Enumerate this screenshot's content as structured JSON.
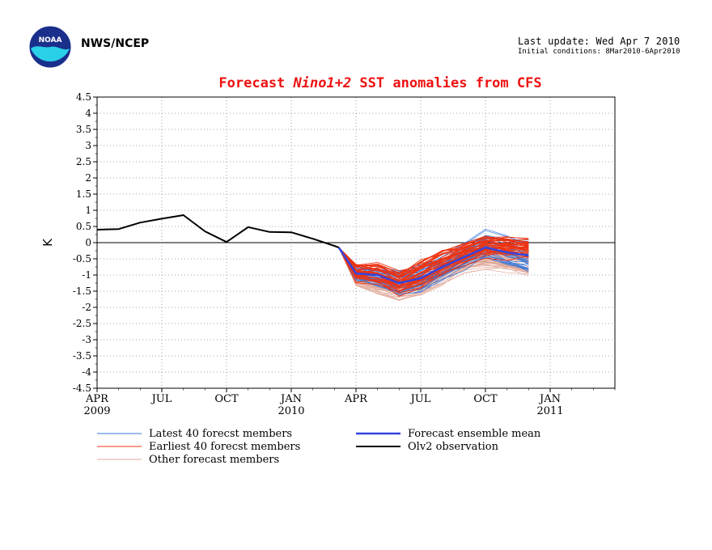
{
  "header": {
    "org": "NWS/NCEP",
    "last_update": "Last update: Wed Apr  7 2010",
    "initial_conditions": "Initial conditions: 8Mar2010-6Apr2010",
    "logo_text": "NOAA"
  },
  "chart_data": {
    "type": "line",
    "title_prefix": "Forecast ",
    "title_italic": "Nino1+2",
    "title_suffix": " SST anomalies from CFS",
    "ylabel": "K",
    "ylim": [
      -4.5,
      4.5
    ],
    "yticks": [
      "4.5",
      "4",
      "3.5",
      "3",
      "2.5",
      "2",
      "1.5",
      "1",
      "0.5",
      "0",
      "-0.5",
      "-1",
      "-1.5",
      "-2",
      "-2.5",
      "-3",
      "-3.5",
      "-4",
      "-4.5"
    ],
    "xticks": [
      {
        "label": "APR",
        "sub": "2009",
        "m": 0
      },
      {
        "label": "JUL",
        "sub": "",
        "m": 3
      },
      {
        "label": "OCT",
        "sub": "",
        "m": 6
      },
      {
        "label": "JAN",
        "sub": "2010",
        "m": 9
      },
      {
        "label": "APR",
        "sub": "",
        "m": 12
      },
      {
        "label": "JUL",
        "sub": "",
        "m": 15
      },
      {
        "label": "OCT",
        "sub": "",
        "m": 18
      },
      {
        "label": "JAN",
        "sub": "2011",
        "m": 21
      }
    ],
    "grid": true,
    "colors": {
      "title": "#ee1111",
      "latest": "#3377dd",
      "earliest": "#ee3311",
      "other": "#e0a898",
      "mean": "#3344dd",
      "obs": "#000000"
    },
    "series": [
      {
        "name": "Olv2 observation",
        "x": [
          0,
          1,
          2,
          3,
          4,
          5,
          6,
          7,
          8,
          9,
          10,
          11,
          11.2
        ],
        "y": [
          0.4,
          0.42,
          0.62,
          0.74,
          0.85,
          0.35,
          0.02,
          0.48,
          0.33,
          0.32,
          0.12,
          -0.1,
          -0.15
        ]
      },
      {
        "name": "Forecast ensemble mean",
        "x": [
          11.2,
          12,
          13,
          14,
          15,
          16,
          17,
          18,
          19,
          20
        ],
        "y": [
          -0.15,
          -0.95,
          -1.0,
          -1.25,
          -1.1,
          -0.75,
          -0.45,
          -0.15,
          -0.3,
          -0.4
        ]
      }
    ],
    "ensemble": {
      "x": [
        11.2,
        12,
        13,
        14,
        15,
        16,
        17,
        18,
        19,
        20
      ],
      "latest": {
        "name": "Latest 40 forecst members",
        "center": [
          -0.15,
          -0.9,
          -1.05,
          -1.25,
          -1.1,
          -0.8,
          -0.45,
          -0.1,
          -0.25,
          -0.4
        ],
        "spread": [
          0.0,
          0.3,
          0.35,
          0.45,
          0.5,
          0.5,
          0.5,
          0.55,
          0.55,
          0.55
        ]
      },
      "earliest": {
        "name": "Earliest 40 forecst members",
        "center": [
          -0.15,
          -0.95,
          -1.0,
          -1.3,
          -1.0,
          -0.65,
          -0.35,
          -0.15,
          -0.15,
          -0.2
        ],
        "spread": [
          0.0,
          0.35,
          0.45,
          0.5,
          0.55,
          0.5,
          0.45,
          0.45,
          0.45,
          0.45
        ]
      },
      "other": {
        "name": "Other forecast members",
        "center": [
          -0.15,
          -1.1,
          -1.3,
          -1.45,
          -1.3,
          -0.95,
          -0.6,
          -0.45,
          -0.55,
          -0.7
        ],
        "spread": [
          0.0,
          0.3,
          0.35,
          0.4,
          0.4,
          0.4,
          0.35,
          0.35,
          0.35,
          0.35
        ]
      }
    },
    "legend": [
      {
        "label": "Latest 40 forecst members",
        "key": "latest"
      },
      {
        "label": "Forecast ensemble mean",
        "key": "mean"
      },
      {
        "label": "Earliest 40 forecst members",
        "key": "earliest"
      },
      {
        "label": "Olv2 observation",
        "key": "obs"
      },
      {
        "label": "Other forecast members",
        "key": "other"
      }
    ]
  }
}
